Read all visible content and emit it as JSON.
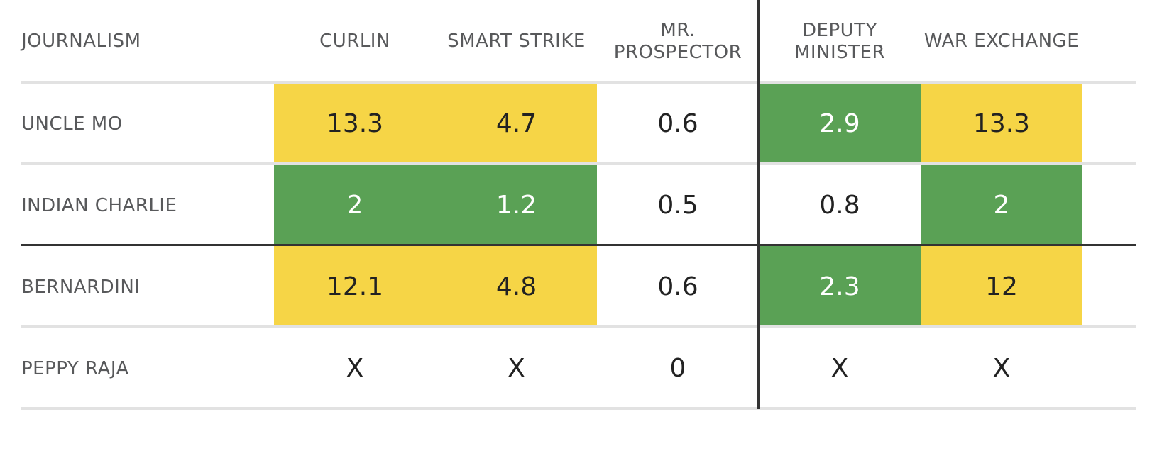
{
  "chart_data": {
    "type": "table",
    "corner_label": "JOURNALISM",
    "columns": [
      "CURLIN",
      "SMART STRIKE",
      "MR.\nPROSPECTOR",
      "DEPUTY\nMINISTER",
      "WAR EXCHANGE"
    ],
    "rows": [
      {
        "label": "UNCLE MO",
        "cells": [
          {
            "value": "13.3",
            "fill": "yellow"
          },
          {
            "value": "4.7",
            "fill": "yellow"
          },
          {
            "value": "0.6",
            "fill": "none"
          },
          {
            "value": "2.9",
            "fill": "green"
          },
          {
            "value": "13.3",
            "fill": "yellow"
          }
        ]
      },
      {
        "label": "INDIAN CHARLIE",
        "cells": [
          {
            "value": "2",
            "fill": "green"
          },
          {
            "value": "1.2",
            "fill": "green"
          },
          {
            "value": "0.5",
            "fill": "none"
          },
          {
            "value": "0.8",
            "fill": "none"
          },
          {
            "value": "2",
            "fill": "green"
          }
        ]
      },
      {
        "label": "BERNARDINI",
        "cells": [
          {
            "value": "12.1",
            "fill": "yellow"
          },
          {
            "value": "4.8",
            "fill": "yellow"
          },
          {
            "value": "0.6",
            "fill": "none"
          },
          {
            "value": "2.3",
            "fill": "green"
          },
          {
            "value": "12",
            "fill": "yellow"
          }
        ]
      },
      {
        "label": "PEPPY RAJA",
        "cells": [
          {
            "value": "X",
            "fill": "none"
          },
          {
            "value": "X",
            "fill": "none"
          },
          {
            "value": "0",
            "fill": "none"
          },
          {
            "value": "X",
            "fill": "none"
          },
          {
            "value": "X",
            "fill": "none"
          }
        ]
      }
    ],
    "colors": {
      "green": "#5aa155",
      "yellow": "#f6d546",
      "none": "#ffffff",
      "header_text": "#58595b",
      "cell_text": "#222222",
      "divider": "#333333",
      "rule": "#e2e2e2"
    }
  }
}
